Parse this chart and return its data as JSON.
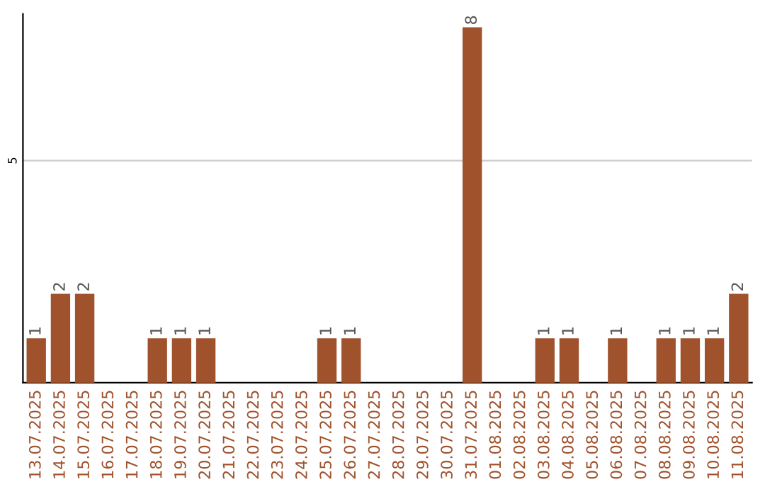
{
  "chart_data": {
    "type": "bar",
    "categories": [
      "13.07.2025",
      "14.07.2025",
      "15.07.2025",
      "16.07.2025",
      "17.07.2025",
      "18.07.2025",
      "19.07.2025",
      "20.07.2025",
      "21.07.2025",
      "22.07.2025",
      "23.07.2025",
      "24.07.2025",
      "25.07.2025",
      "26.07.2025",
      "27.07.2025",
      "28.07.2025",
      "29.07.2025",
      "30.07.2025",
      "31.07.2025",
      "01.08.2025",
      "02.08.2025",
      "03.08.2025",
      "04.08.2025",
      "05.08.2025",
      "06.08.2025",
      "07.08.2025",
      "08.08.2025",
      "09.08.2025",
      "10.08.2025",
      "11.08.2025"
    ],
    "values": [
      1,
      2,
      2,
      0,
      0,
      1,
      1,
      1,
      0,
      0,
      0,
      0,
      1,
      1,
      0,
      0,
      0,
      0,
      8,
      0,
      0,
      1,
      1,
      0,
      1,
      0,
      1,
      1,
      1,
      2
    ],
    "value_labels": [
      "1",
      "2",
      "2",
      null,
      null,
      "1",
      "1",
      "1",
      null,
      null,
      null,
      null,
      "1",
      "1",
      null,
      null,
      null,
      null,
      "8",
      null,
      null,
      "1",
      "1",
      null,
      "1",
      null,
      "1",
      "1",
      "1",
      "2"
    ],
    "color": "#a0522d",
    "ylim": [
      0,
      8.3
    ],
    "yticks": [
      5
    ],
    "grid": "y",
    "legend": false
  }
}
